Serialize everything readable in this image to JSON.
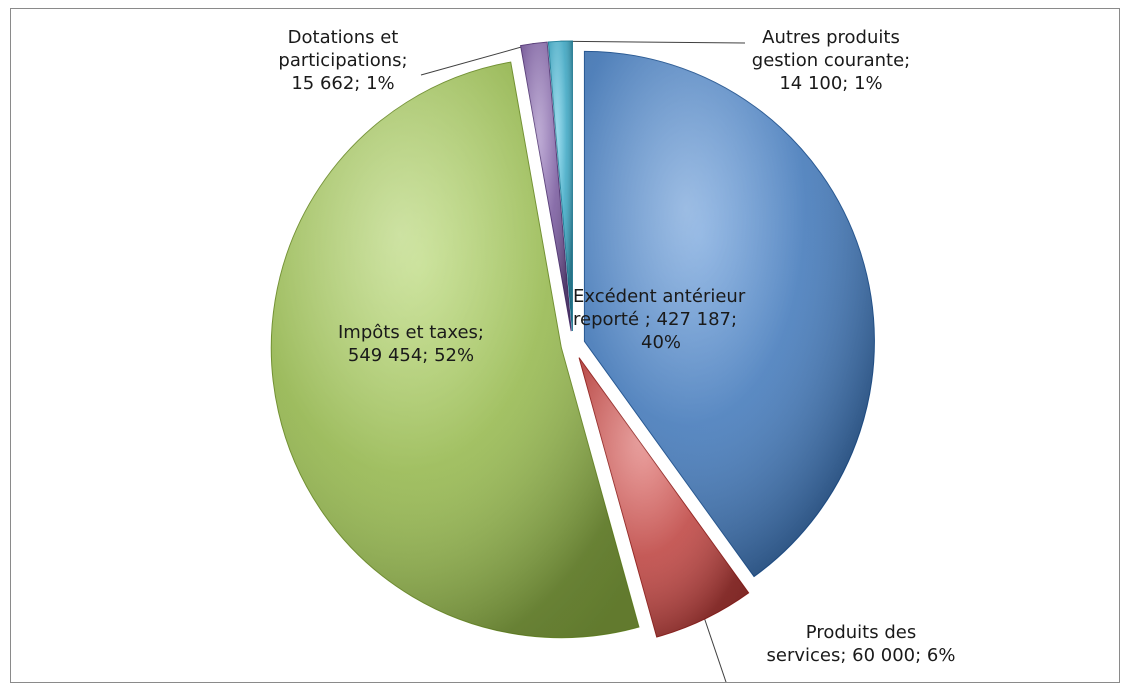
{
  "chart_data": {
    "type": "pie",
    "exploded": true,
    "style": "3d-shaded",
    "start_angle_deg": 0,
    "direction": "clockwise",
    "slices": [
      {
        "label": "Excédent antérieur reporté",
        "value": 427187,
        "percent": "40%",
        "color": "#4f81bd",
        "label_lines": [
          "Excédent antérieur",
          "reporté ; 427 187;",
          "40%"
        ]
      },
      {
        "label": "Produits des services",
        "value": 60000,
        "percent": "6%",
        "color": "#c0504d",
        "label_lines": [
          "Produits des",
          "services; 60 000; 6%"
        ]
      },
      {
        "label": "Impôts et taxes",
        "value": 549454,
        "percent": "52%",
        "color": "#9bbb59",
        "label_lines": [
          "Impôts et taxes;",
          "549 454; 52%"
        ]
      },
      {
        "label": "Dotations et participations",
        "value": 15662,
        "percent": "1%",
        "color": "#8064a2",
        "label_lines": [
          "Dotations et",
          "participations;",
          "15 662; 1%"
        ]
      },
      {
        "label": "Autres produits gestion courante",
        "value": 14100,
        "percent": "1%",
        "color": "#4bacc6",
        "label_lines": [
          "Autres produits",
          "gestion courante;",
          "14 100; 1%"
        ]
      }
    ]
  }
}
